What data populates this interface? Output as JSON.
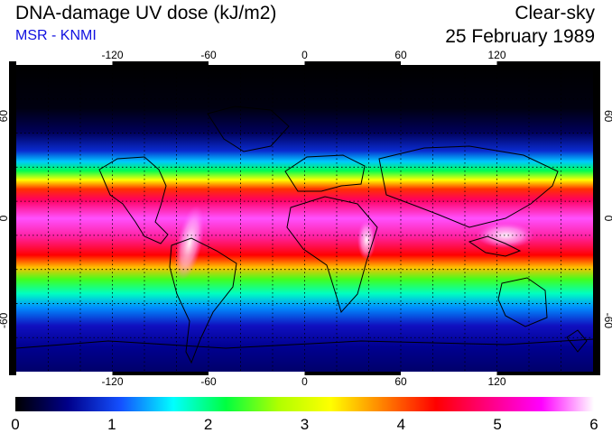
{
  "title": "DNA-damage UV dose (kJ/m2)",
  "source": "MSR - KNMI",
  "condition": "Clear-sky",
  "date": "25 February 1989",
  "map": {
    "projection": "equirectangular",
    "lon_range": [
      -180,
      180
    ],
    "lat_range": [
      -90,
      90
    ],
    "lon_ticks": [
      -120,
      -60,
      0,
      60,
      120
    ],
    "lat_ticks": [
      60,
      0,
      -60
    ],
    "lon_tick_labels": [
      "-120",
      "-60",
      "0",
      "60",
      "120"
    ],
    "lat_tick_labels": [
      "60",
      "0",
      "-60"
    ],
    "graticule_style": "dotted",
    "graticule_step_deg": 20,
    "coastlines": true
  },
  "colorbar": {
    "min": 0,
    "max": 6,
    "tick_labels": [
      "0",
      "1",
      "2",
      "3",
      "4",
      "5",
      "6"
    ],
    "colors": [
      "#000000",
      "#00008a",
      "#1450ff",
      "#00ffff",
      "#00ff40",
      "#b0ff00",
      "#ffff00",
      "#ff8000",
      "#ff0000",
      "#ff0080",
      "#ff00ff",
      "#ffffff"
    ]
  }
}
